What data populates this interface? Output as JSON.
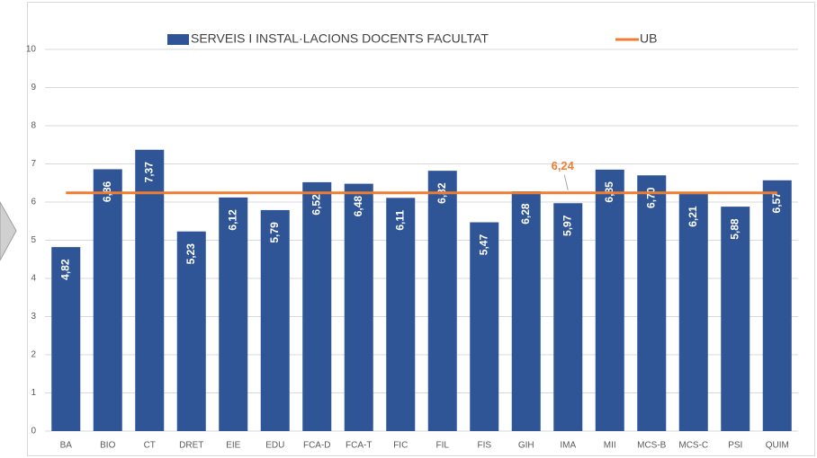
{
  "chart_data": {
    "type": "bar",
    "categories": [
      "BA",
      "BIO",
      "CT",
      "DRET",
      "EIE",
      "EDU",
      "FCA-D",
      "FCA-T",
      "FIC",
      "FIL",
      "FIS",
      "GIH",
      "IMA",
      "MII",
      "MCS-B",
      "MCS-C",
      "PSI",
      "QUIM"
    ],
    "series": [
      {
        "name": "SERVEIS I INSTAL·LACIONS DOCENTS FACULTAT",
        "color": "#2f5597",
        "type": "bar",
        "values": [
          4.82,
          6.86,
          7.37,
          5.23,
          6.12,
          5.79,
          6.52,
          6.48,
          6.11,
          6.82,
          5.47,
          6.28,
          5.97,
          6.85,
          6.7,
          6.21,
          5.88,
          6.57
        ],
        "value_labels": [
          "4,82",
          "6,86",
          "7,37",
          "5,23",
          "6,12",
          "5,79",
          "6,52",
          "6,48",
          "6,11",
          "6,82",
          "5,47",
          "6,28",
          "5,97",
          "6,85",
          "6,70",
          "6,21",
          "5,88",
          "6,57"
        ]
      },
      {
        "name": "UB",
        "color": "#ed7d31",
        "type": "line",
        "values": [
          6.24,
          6.24,
          6.24,
          6.24,
          6.24,
          6.24,
          6.24,
          6.24,
          6.24,
          6.24,
          6.24,
          6.24,
          6.24,
          6.24,
          6.24,
          6.24,
          6.24,
          6.24
        ],
        "value_labels": [
          null,
          null,
          null,
          null,
          null,
          null,
          null,
          null,
          null,
          null,
          null,
          null,
          "6,24",
          null,
          null,
          null,
          null,
          null
        ]
      }
    ],
    "ylim": [
      0,
      10
    ],
    "yticks": [
      0,
      1,
      2,
      3,
      4,
      5,
      6,
      7,
      8,
      9,
      10
    ],
    "grid": true,
    "legend": "top"
  }
}
